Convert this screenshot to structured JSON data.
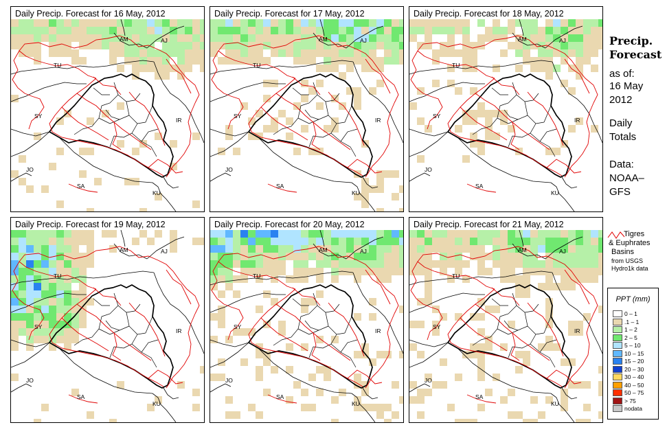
{
  "panels": [
    {
      "title": "Daily Precip. Forecast for  16 May, 2012",
      "day": 16
    },
    {
      "title": "Daily Precip. Forecast for  17 May, 2012",
      "day": 17
    },
    {
      "title": "Daily Precip. Forecast for  18 May, 2012",
      "day": 18
    },
    {
      "title": "Daily Precip. Forecast for  19 May, 2012",
      "day": 19
    },
    {
      "title": "Daily Precip. Forecast for  20 May, 2012",
      "day": 20
    },
    {
      "title": "Daily Precip. Forecast for  21 May, 2012",
      "day": 21
    }
  ],
  "country_labels": [
    "AM",
    "AJ",
    "TU",
    "SY",
    "IR",
    "JO",
    "SA",
    "KU"
  ],
  "side": {
    "title_line1": "Precip.",
    "title_line2": "Forecast",
    "asof": "as of:",
    "date_line1": "16 May",
    "date_line2": "2012",
    "totals_line1": "Daily",
    "totals_line2": "Totals",
    "data_line1": "Data:",
    "data_line2": "NOAA–",
    "data_line3": "GFS"
  },
  "basin_legend": {
    "line1": "Tigres",
    "line2": "& Euphrates",
    "line3": "Basins",
    "src1": "from USGS",
    "src2": "Hydro1k data",
    "color": "#e00000"
  },
  "ppt_legend": {
    "title": "PPT (mm)",
    "items": [
      {
        "label": "0 – 1",
        "color": "#ffffff"
      },
      {
        "label": ".1 – 1",
        "color": "#ead8b0"
      },
      {
        "label": "1 – 2",
        "color": "#b6f0a8"
      },
      {
        "label": "2 – 5",
        "color": "#70e870"
      },
      {
        "label": "5 – 10",
        "color": "#b0e4ff"
      },
      {
        "label": "10 – 15",
        "color": "#60b8ff"
      },
      {
        "label": "15 – 20",
        "color": "#2a82f0"
      },
      {
        "label": "20 – 30",
        "color": "#1040d0"
      },
      {
        "label": "30 – 40",
        "color": "#ffd860"
      },
      {
        "label": "40 – 50",
        "color": "#ffa000"
      },
      {
        "label": "50 – 75",
        "color": "#ff3000"
      },
      {
        "label": "> 75",
        "color": "#a01414"
      },
      {
        "label": "nodata",
        "color": "#c8c8c8"
      }
    ]
  }
}
